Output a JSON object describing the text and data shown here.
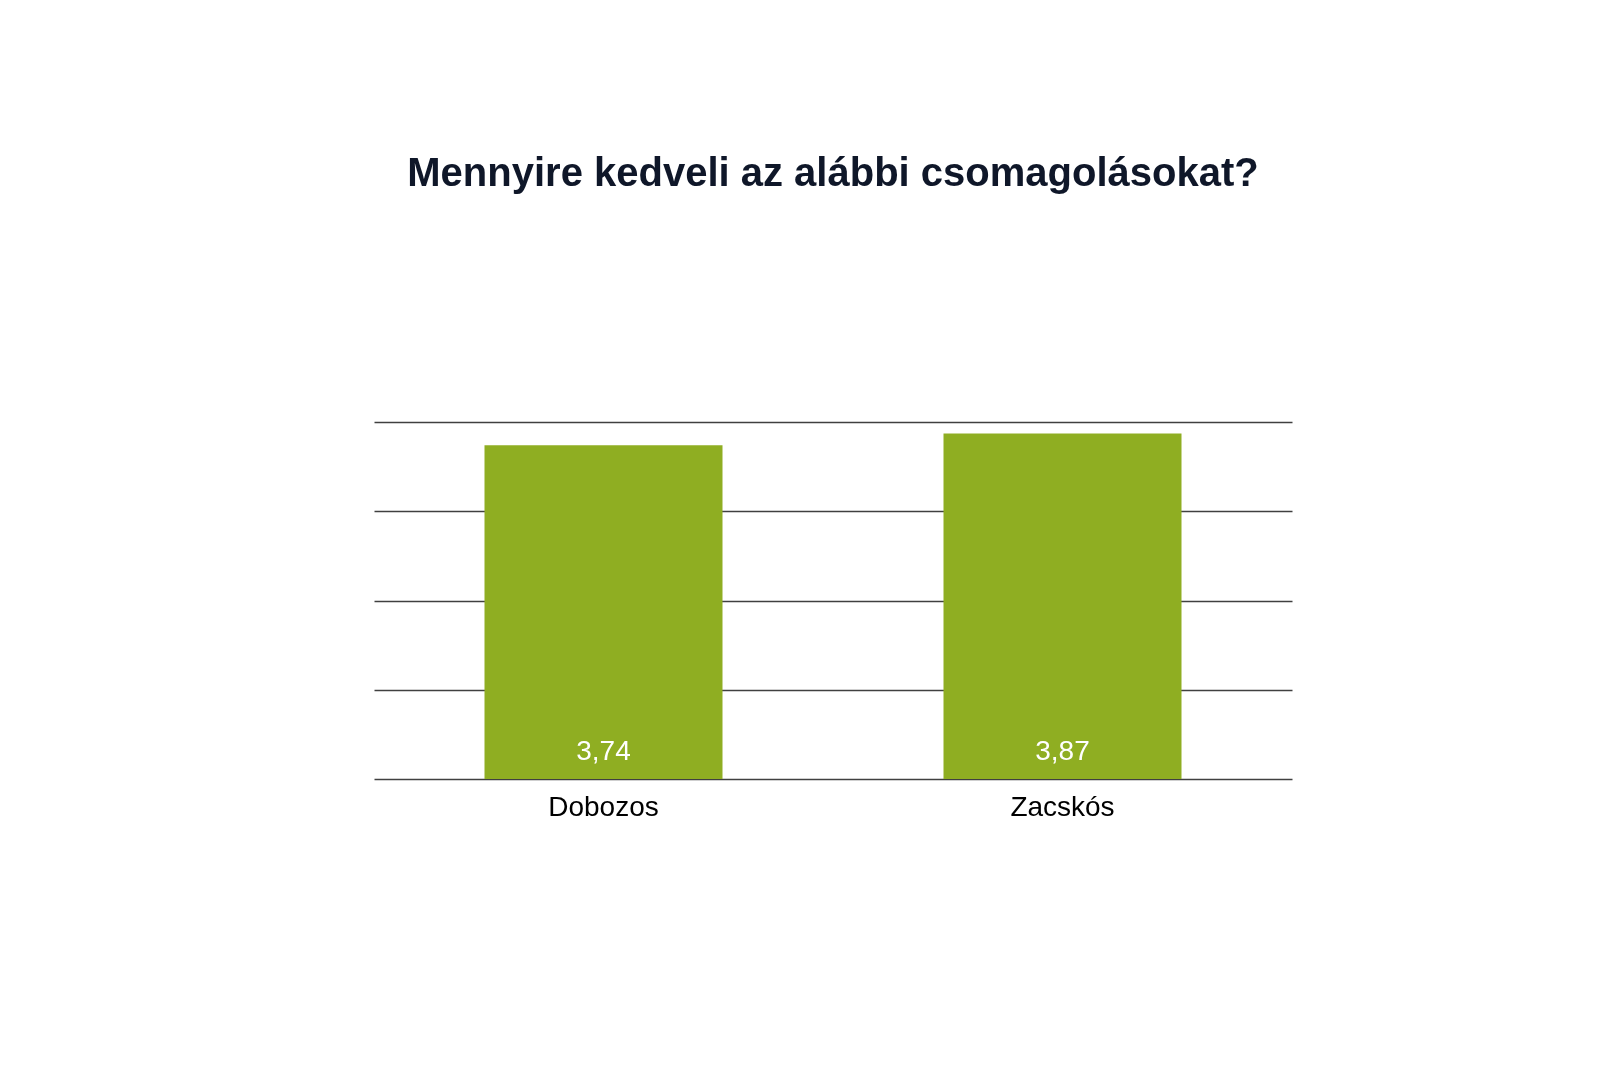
{
  "chart_data": {
    "type": "bar",
    "title": "Mennyire kedveli az alábbi csomagolásokat?",
    "categories": [
      "Dobozos",
      "Zacskós"
    ],
    "values": [
      3.74,
      3.87
    ],
    "color": "#8fae22",
    "value_labels": [
      "3,74",
      "3,87"
    ],
    "grid": "y",
    "tick_labels": "x"
  }
}
